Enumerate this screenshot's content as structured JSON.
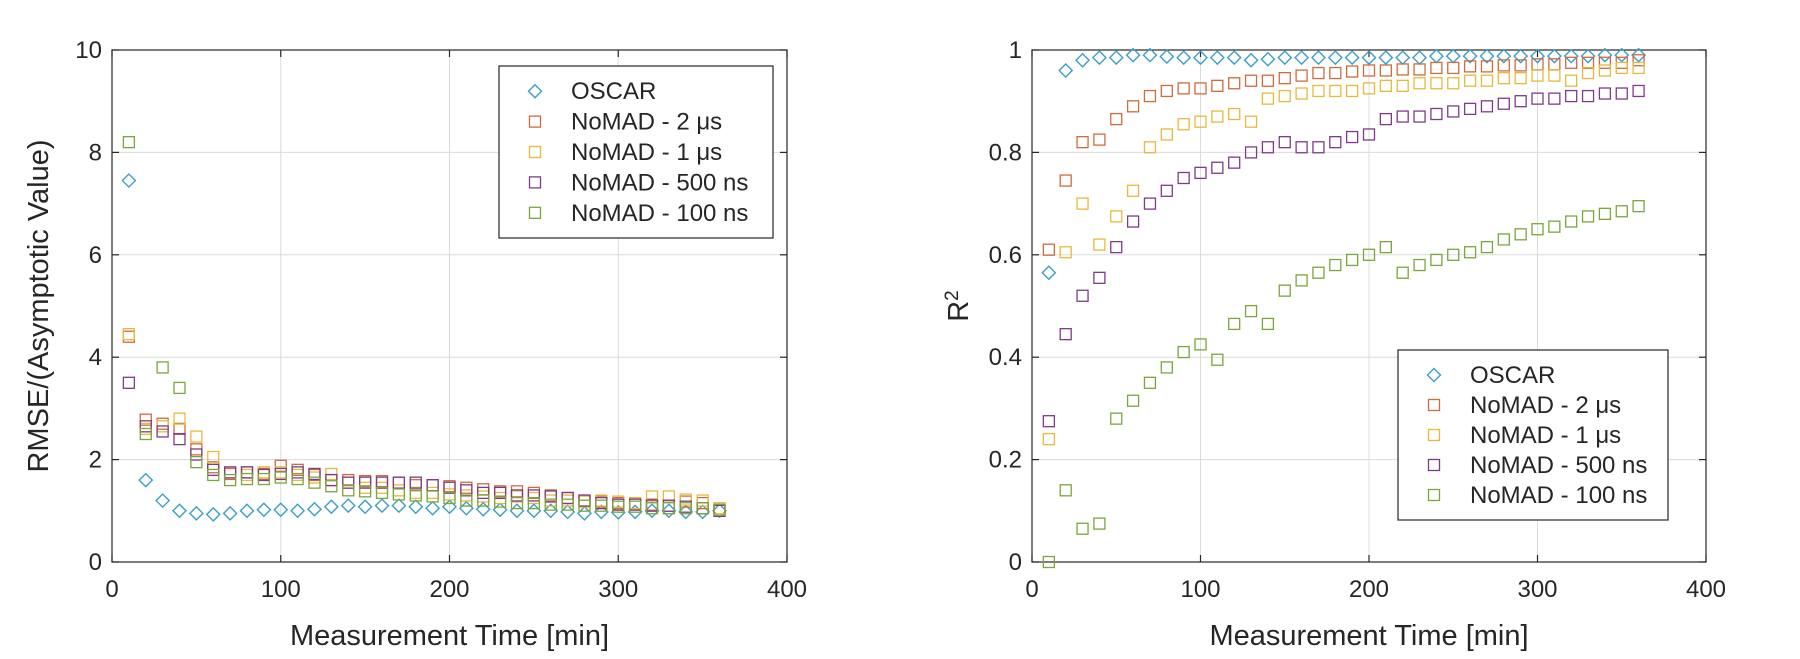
{
  "colors": {
    "OSCAR": "#3a9fc8",
    "NoMAD - 2 μs": "#cf6b3c",
    "NoMAD - 1 μs": "#e8b93b",
    "NoMAD - 500 ns": "#7e3b8a",
    "NoMAD - 100 ns": "#7aa63c"
  },
  "chart_data": [
    {
      "type": "scatter",
      "xlabel": "Measurement Time [min]",
      "ylabel": "RMSE/(Asymptotic Value)",
      "xlim": [
        0,
        400
      ],
      "ylim": [
        0,
        10
      ],
      "xticks": [
        0,
        100,
        200,
        300,
        400
      ],
      "yticks": [
        0,
        2,
        4,
        6,
        8,
        10
      ],
      "xtick_labels": [
        "0",
        "100",
        "200",
        "300",
        "400"
      ],
      "ytick_labels": [
        "0",
        "2",
        "4",
        "6",
        "8",
        "10"
      ],
      "grid": true,
      "legend_position": "top-right",
      "series": [
        {
          "name": "OSCAR",
          "marker": "diamond",
          "x": [
            10,
            20,
            30,
            40,
            50,
            60,
            70,
            80,
            90,
            100,
            110,
            120,
            130,
            140,
            150,
            160,
            170,
            180,
            190,
            200,
            210,
            220,
            230,
            240,
            250,
            260,
            270,
            280,
            290,
            300,
            310,
            320,
            330,
            340,
            350,
            360
          ],
          "y": [
            7.45,
            1.6,
            1.2,
            1.0,
            0.95,
            0.93,
            0.95,
            1.0,
            1.02,
            1.02,
            1.0,
            1.03,
            1.08,
            1.1,
            1.08,
            1.1,
            1.1,
            1.08,
            1.05,
            1.08,
            1.05,
            1.03,
            1.02,
            1.0,
            1.0,
            1.0,
            0.98,
            0.95,
            0.98,
            0.97,
            0.98,
            1.0,
            1.0,
            0.98,
            0.98,
            1.0
          ]
        },
        {
          "name": "NoMAD - 2 μs",
          "marker": "square",
          "x": [
            10,
            20,
            30,
            40,
            50,
            60,
            70,
            80,
            90,
            100,
            110,
            120,
            130,
            140,
            150,
            160,
            170,
            180,
            190,
            200,
            210,
            220,
            230,
            240,
            250,
            260,
            270,
            280,
            290,
            300,
            310,
            320,
            330,
            340,
            350,
            360
          ],
          "y": [
            4.4,
            2.78,
            2.7,
            2.6,
            2.2,
            1.85,
            1.72,
            1.75,
            1.72,
            1.88,
            1.8,
            1.7,
            1.6,
            1.6,
            1.58,
            1.58,
            1.55,
            1.5,
            1.5,
            1.48,
            1.45,
            1.42,
            1.38,
            1.38,
            1.35,
            1.3,
            1.25,
            1.2,
            1.18,
            1.15,
            1.15,
            1.12,
            1.1,
            1.18,
            1.15,
            1.0
          ]
        },
        {
          "name": "NoMAD - 1 μs",
          "marker": "square",
          "x": [
            10,
            20,
            30,
            40,
            50,
            60,
            70,
            80,
            90,
            100,
            110,
            120,
            130,
            140,
            150,
            160,
            170,
            180,
            190,
            200,
            210,
            220,
            230,
            240,
            250,
            260,
            270,
            280,
            290,
            300,
            310,
            320,
            330,
            340,
            350,
            360
          ],
          "y": [
            4.45,
            2.6,
            2.65,
            2.8,
            2.45,
            2.05,
            1.75,
            1.7,
            1.75,
            1.75,
            1.7,
            1.65,
            1.72,
            1.55,
            1.45,
            1.45,
            1.4,
            1.35,
            1.35,
            1.32,
            1.3,
            1.28,
            1.25,
            1.28,
            1.25,
            1.2,
            1.2,
            1.18,
            1.2,
            1.18,
            1.15,
            1.28,
            1.28,
            1.22,
            1.2,
            1.05
          ]
        },
        {
          "name": "NoMAD - 500 ns",
          "marker": "square",
          "x": [
            10,
            20,
            30,
            40,
            50,
            60,
            70,
            80,
            90,
            100,
            110,
            120,
            130,
            140,
            150,
            160,
            170,
            180,
            190,
            200,
            210,
            220,
            230,
            240,
            250,
            260,
            270,
            280,
            290,
            300,
            310,
            320,
            330,
            340,
            350,
            360
          ],
          "y": [
            3.5,
            2.65,
            2.55,
            2.4,
            2.1,
            1.8,
            1.75,
            1.75,
            1.7,
            1.72,
            1.75,
            1.72,
            1.6,
            1.55,
            1.55,
            1.55,
            1.55,
            1.55,
            1.5,
            1.45,
            1.4,
            1.35,
            1.35,
            1.3,
            1.3,
            1.28,
            1.25,
            1.2,
            1.15,
            1.12,
            1.12,
            1.1,
            1.1,
            1.08,
            1.05,
            1.0
          ]
        },
        {
          "name": "NoMAD - 100 ns",
          "marker": "square",
          "x": [
            10,
            20,
            30,
            40,
            50,
            60,
            70,
            80,
            90,
            100,
            110,
            120,
            130,
            140,
            150,
            160,
            170,
            180,
            190,
            200,
            210,
            220,
            230,
            240,
            250,
            260,
            270,
            280,
            290,
            300,
            310,
            320,
            330,
            340,
            350,
            360
          ],
          "y": [
            8.2,
            2.5,
            3.8,
            3.4,
            1.95,
            1.7,
            1.6,
            1.62,
            1.62,
            1.65,
            1.62,
            1.55,
            1.48,
            1.4,
            1.38,
            1.35,
            1.32,
            1.3,
            1.28,
            1.25,
            1.2,
            1.2,
            1.18,
            1.15,
            1.15,
            1.12,
            1.12,
            1.1,
            1.1,
            1.08,
            1.08,
            1.05,
            1.05,
            1.05,
            1.05,
            1.02
          ]
        }
      ]
    },
    {
      "type": "scatter",
      "xlabel": "Measurement Time [min]",
      "ylabel": "R",
      "ylabel_superscript": "2",
      "xlim": [
        0,
        400
      ],
      "ylim": [
        0,
        1
      ],
      "xticks": [
        0,
        100,
        200,
        300,
        400
      ],
      "yticks": [
        0,
        0.2,
        0.4,
        0.6,
        0.8,
        1
      ],
      "xtick_labels": [
        "0",
        "100",
        "200",
        "300",
        "400"
      ],
      "ytick_labels": [
        "0",
        "0.2",
        "0.4",
        "0.6",
        "0.8",
        "1"
      ],
      "grid": true,
      "legend_position": "bottom-right",
      "series": [
        {
          "name": "OSCAR",
          "marker": "diamond",
          "x": [
            10,
            20,
            30,
            40,
            50,
            60,
            70,
            80,
            90,
            100,
            110,
            120,
            130,
            140,
            150,
            160,
            170,
            180,
            190,
            200,
            210,
            220,
            230,
            240,
            250,
            260,
            270,
            280,
            290,
            300,
            310,
            320,
            330,
            340,
            350,
            360
          ],
          "y": [
            0.565,
            0.96,
            0.98,
            0.985,
            0.985,
            0.99,
            0.99,
            0.987,
            0.985,
            0.985,
            0.985,
            0.985,
            0.98,
            0.982,
            0.985,
            0.985,
            0.985,
            0.985,
            0.985,
            0.985,
            0.985,
            0.985,
            0.985,
            0.988,
            0.988,
            0.988,
            0.988,
            0.988,
            0.988,
            0.988,
            0.988,
            0.988,
            0.988,
            0.99,
            0.99,
            0.99
          ]
        },
        {
          "name": "NoMAD - 2 μs",
          "marker": "square",
          "x": [
            10,
            20,
            30,
            40,
            50,
            60,
            70,
            80,
            90,
            100,
            110,
            120,
            130,
            140,
            150,
            160,
            170,
            180,
            190,
            200,
            210,
            220,
            230,
            240,
            250,
            260,
            270,
            280,
            290,
            300,
            310,
            320,
            330,
            340,
            350,
            360
          ],
          "y": [
            0.61,
            0.745,
            0.82,
            0.825,
            0.865,
            0.89,
            0.91,
            0.92,
            0.925,
            0.925,
            0.93,
            0.935,
            0.94,
            0.94,
            0.945,
            0.95,
            0.955,
            0.955,
            0.958,
            0.96,
            0.96,
            0.962,
            0.962,
            0.965,
            0.965,
            0.968,
            0.968,
            0.97,
            0.97,
            0.972,
            0.972,
            0.975,
            0.975,
            0.975,
            0.975,
            0.98
          ]
        },
        {
          "name": "NoMAD - 1 μs",
          "marker": "square",
          "x": [
            10,
            20,
            30,
            40,
            50,
            60,
            70,
            80,
            90,
            100,
            110,
            120,
            130,
            140,
            150,
            160,
            170,
            180,
            190,
            200,
            210,
            220,
            230,
            240,
            250,
            260,
            270,
            280,
            290,
            300,
            310,
            320,
            330,
            340,
            350,
            360
          ],
          "y": [
            0.24,
            0.605,
            0.7,
            0.62,
            0.675,
            0.725,
            0.81,
            0.835,
            0.855,
            0.86,
            0.87,
            0.875,
            0.86,
            0.905,
            0.91,
            0.915,
            0.92,
            0.92,
            0.92,
            0.925,
            0.93,
            0.93,
            0.935,
            0.935,
            0.935,
            0.94,
            0.94,
            0.945,
            0.945,
            0.95,
            0.95,
            0.94,
            0.955,
            0.96,
            0.965,
            0.965
          ]
        },
        {
          "name": "NoMAD - 500 ns",
          "marker": "square",
          "x": [
            10,
            20,
            30,
            40,
            50,
            60,
            70,
            80,
            90,
            100,
            110,
            120,
            130,
            140,
            150,
            160,
            170,
            180,
            190,
            200,
            210,
            220,
            230,
            240,
            250,
            260,
            270,
            280,
            290,
            300,
            310,
            320,
            330,
            340,
            350,
            360
          ],
          "y": [
            0.275,
            0.445,
            0.52,
            0.555,
            0.615,
            0.665,
            0.7,
            0.725,
            0.75,
            0.76,
            0.77,
            0.78,
            0.8,
            0.81,
            0.82,
            0.81,
            0.81,
            0.82,
            0.83,
            0.835,
            0.865,
            0.87,
            0.87,
            0.875,
            0.88,
            0.885,
            0.89,
            0.895,
            0.9,
            0.905,
            0.905,
            0.91,
            0.91,
            0.915,
            0.915,
            0.92
          ]
        },
        {
          "name": "NoMAD - 100 ns",
          "marker": "square",
          "x": [
            10,
            20,
            30,
            40,
            50,
            60,
            70,
            80,
            90,
            100,
            110,
            120,
            130,
            140,
            150,
            160,
            170,
            180,
            190,
            200,
            210,
            220,
            230,
            240,
            250,
            260,
            270,
            280,
            290,
            300,
            310,
            320,
            330,
            340,
            350,
            360
          ],
          "y": [
            0.0,
            0.14,
            0.065,
            0.075,
            0.28,
            0.315,
            0.35,
            0.38,
            0.41,
            0.425,
            0.395,
            0.465,
            0.49,
            0.465,
            0.53,
            0.55,
            0.565,
            0.58,
            0.59,
            0.6,
            0.615,
            0.565,
            0.58,
            0.59,
            0.6,
            0.605,
            0.615,
            0.63,
            0.64,
            0.65,
            0.655,
            0.665,
            0.675,
            0.68,
            0.685,
            0.695
          ]
        }
      ]
    }
  ]
}
